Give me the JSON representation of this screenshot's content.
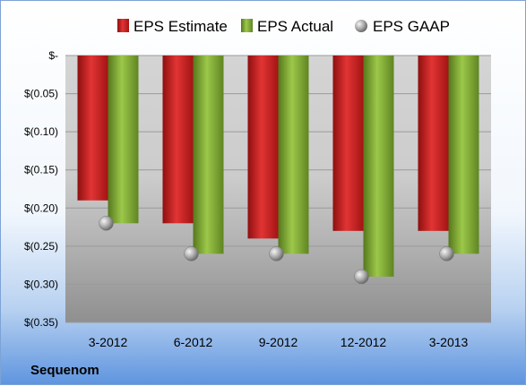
{
  "chart_data": {
    "type": "bar",
    "title": "",
    "xlabel": "",
    "ylabel": "",
    "categories": [
      "3-2012",
      "6-2012",
      "9-2012",
      "12-2012",
      "3-2013"
    ],
    "series": [
      {
        "name": "EPS Estimate",
        "kind": "bar",
        "color": "#cc1f1f",
        "values": [
          -0.19,
          -0.22,
          -0.24,
          -0.23,
          -0.23
        ]
      },
      {
        "name": "EPS Actual",
        "kind": "bar",
        "color": "#7ea832",
        "values": [
          -0.22,
          -0.26,
          -0.26,
          -0.29,
          -0.26
        ]
      },
      {
        "name": "EPS GAAP",
        "kind": "marker",
        "color": "#a9a9a9",
        "values": [
          -0.22,
          -0.26,
          -0.26,
          -0.29,
          -0.26
        ]
      }
    ],
    "ylim": [
      -0.35,
      0
    ],
    "yticks": [
      0,
      -0.05,
      -0.1,
      -0.15,
      -0.2,
      -0.25,
      -0.3,
      -0.35
    ],
    "ytick_labels": [
      "$-",
      "$(0.05)",
      "$(0.10)",
      "$(0.15)",
      "$(0.20)",
      "$(0.25)",
      "$(0.30)",
      "$(0.35)"
    ],
    "grid": true,
    "legend_position": "top"
  },
  "footer": {
    "company": "Sequenom"
  }
}
